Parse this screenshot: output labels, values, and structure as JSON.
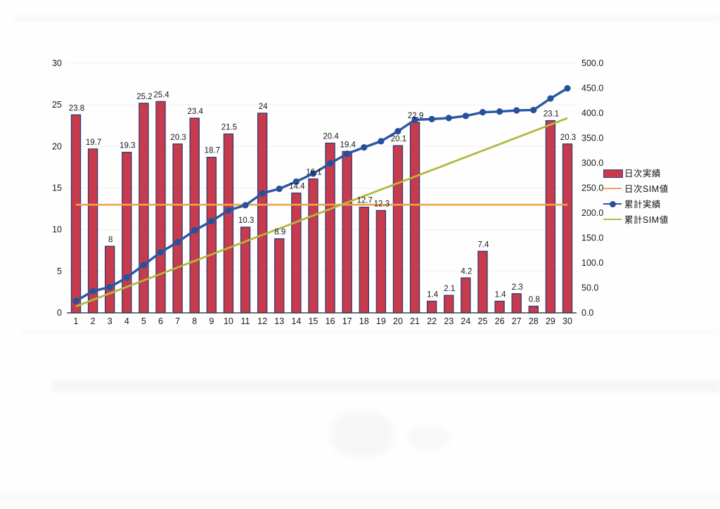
{
  "chart_data": {
    "type": "combo-bar-line",
    "title": "",
    "categories": [
      "1",
      "2",
      "3",
      "4",
      "5",
      "6",
      "7",
      "8",
      "9",
      "10",
      "11",
      "12",
      "13",
      "14",
      "15",
      "16",
      "17",
      "18",
      "19",
      "20",
      "21",
      "22",
      "23",
      "24",
      "25",
      "26",
      "27",
      "28",
      "29",
      "30"
    ],
    "series": [
      {
        "name": "日次実績",
        "type": "bar",
        "axis": "left",
        "color": "#c73b4d",
        "border_color": "#3c3c72",
        "values": [
          23.8,
          19.7,
          8,
          19.3,
          25.2,
          25.4,
          20.3,
          23.4,
          18.7,
          21.5,
          10.3,
          24,
          8.9,
          14.4,
          16.1,
          20.4,
          19.4,
          12.7,
          12.3,
          20.1,
          22.9,
          1.4,
          2.1,
          4.2,
          7.4,
          1.4,
          2.3,
          0.8,
          23.1,
          20.3
        ],
        "labels": [
          "23.8",
          "19.7",
          "8",
          "19.3",
          "25.2",
          "25.4",
          "20.3",
          "23.4",
          "18.7",
          "21.5",
          "10.3",
          "24",
          "8.9",
          "14.4",
          "16.1",
          "20.4",
          "19.4",
          "12.7",
          "12.3",
          "20.1",
          "22.9",
          "1.4",
          "2.1",
          "4.2",
          "7.4",
          "1.4",
          "2.3",
          "0.8",
          "23.1",
          "20.3"
        ]
      },
      {
        "name": "日次SIM値",
        "type": "line",
        "axis": "left",
        "color": "#f2a24b",
        "values": [
          13,
          13,
          13,
          13,
          13,
          13,
          13,
          13,
          13,
          13,
          13,
          13,
          13,
          13,
          13,
          13,
          13,
          13,
          13,
          13,
          13,
          13,
          13,
          13,
          13,
          13,
          13,
          13,
          13,
          13
        ]
      },
      {
        "name": "累計実績",
        "type": "line",
        "axis": "right",
        "marker": true,
        "color": "#2b57a3",
        "values": [
          23.8,
          43.5,
          51.5,
          70.8,
          96.0,
          121.4,
          141.7,
          165.1,
          183.8,
          205.3,
          215.6,
          239.6,
          248.5,
          262.9,
          279.0,
          299.4,
          318.8,
          331.5,
          343.8,
          363.9,
          386.8,
          388.2,
          390.3,
          394.5,
          401.9,
          403.3,
          405.6,
          406.4,
          429.5,
          449.8
        ]
      },
      {
        "name": "累計SIM値",
        "type": "line",
        "axis": "right",
        "color": "#b4b73e",
        "values": [
          13,
          26,
          39,
          52,
          65,
          78,
          91,
          104,
          117,
          130,
          143,
          156,
          169,
          182,
          195,
          208,
          221,
          234,
          247,
          260,
          273,
          286,
          299,
          312,
          325,
          338,
          351,
          364,
          377,
          390
        ]
      }
    ],
    "left_axis": {
      "min": 0,
      "max": 30,
      "step": 5,
      "ticks": [
        "0",
        "5",
        "10",
        "15",
        "20",
        "25",
        "30"
      ]
    },
    "right_axis": {
      "min": 0,
      "max": 500,
      "step": 50,
      "ticks": [
        "0.0",
        "50.0",
        "100.0",
        "150.0",
        "200.0",
        "250.0",
        "300.0",
        "350.0",
        "400.0",
        "450.0",
        "500.0"
      ]
    },
    "grid": "faint horizontal at left-axis ticks",
    "legend_position": "right"
  },
  "colors": {
    "bar_fill": "#c73b4d",
    "bar_border": "#3c3c72",
    "daily_sim_line": "#f2a24b",
    "cumulative_actual_line": "#2b57a3",
    "cumulative_sim_line": "#b4b73e",
    "axis_text": "#1a1a1a",
    "baseline": "#444444"
  }
}
